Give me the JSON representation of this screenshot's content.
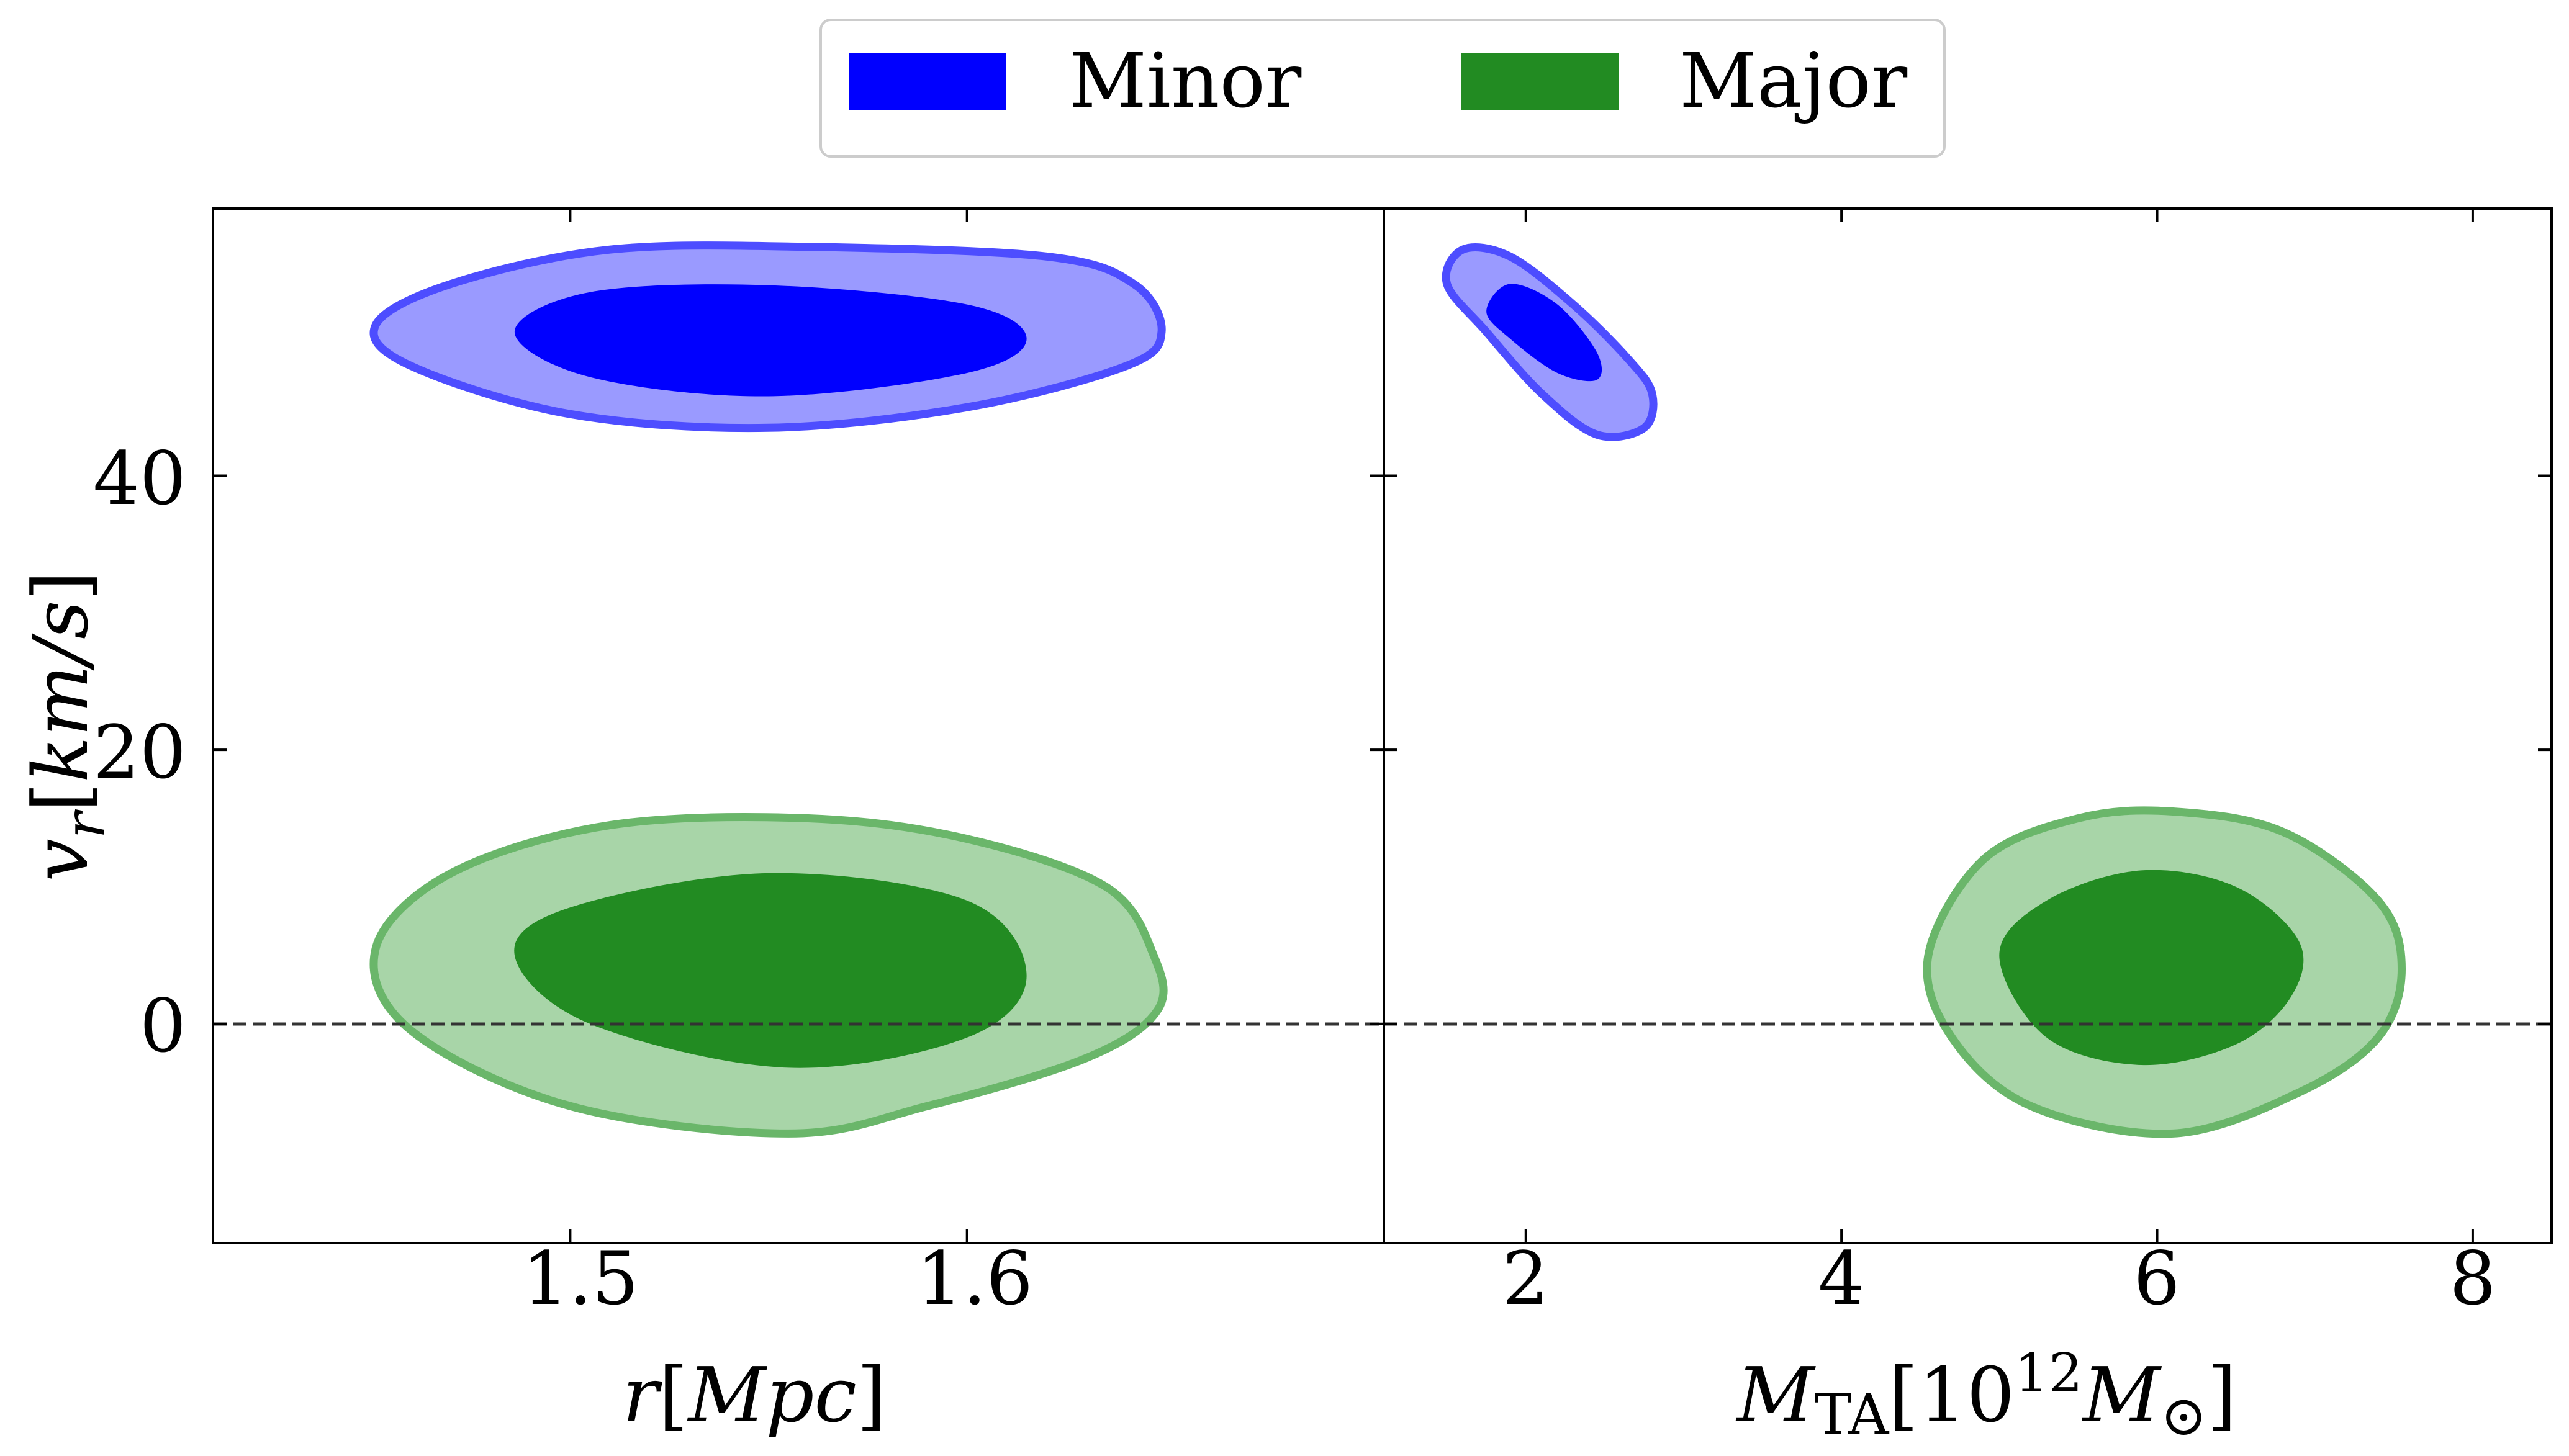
{
  "legend": {
    "placement": "top-center",
    "items": [
      {
        "label": "Minor",
        "color": "#0000ff"
      },
      {
        "label": "Major",
        "color": "#228b22"
      }
    ]
  },
  "colors": {
    "minor_fill": "#0000ff",
    "minor_outer_fill": "#9a9aff",
    "minor_edge": "#4d4dff",
    "major_fill": "#228b22",
    "major_outer_fill": "#a8d5a8",
    "major_edge": "#6ab66a",
    "reference_line": "#333333"
  },
  "panels": {
    "left": {
      "xlabel_main": "r",
      "xlabel_unit": "[Mpc]",
      "xticks": [
        "1.5",
        "1.6"
      ]
    },
    "right": {
      "xlabel_main": "M",
      "xlabel_sub": "TA",
      "xlabel_bracket_open": "[10",
      "xlabel_exp": "12",
      "xlabel_mass": "M",
      "xlabel_sun": "⊙",
      "xlabel_bracket_close": "]",
      "xticks": [
        "2",
        "4",
        "6",
        "8"
      ]
    },
    "ylabel_main": "v",
    "ylabel_sub": "r",
    "ylabel_unit": "[km/s]",
    "yticks": [
      "0",
      "20",
      "40"
    ]
  },
  "chart_data": [
    {
      "type": "contour",
      "panel": "left",
      "xlabel": "r[Mpc]",
      "ylabel": "v_r[km/s]",
      "xlim": [
        1.41,
        1.705
      ],
      "ylim": [
        -16,
        59.5
      ],
      "xticks": [
        1.5,
        1.6
      ],
      "yticks": [
        0,
        20,
        40
      ],
      "reference_line": {
        "y": 0,
        "style": "dashed"
      },
      "series": [
        {
          "name": "Minor",
          "levels": [
            {
              "level": "outer",
              "x": [
                1.451,
                1.47,
                1.51,
                1.56,
                1.62,
                1.642,
                1.649,
                1.64,
                1.6,
                1.55,
                1.5,
                1.46,
                1.451
              ],
              "y": [
                51,
                54,
                56.5,
                56.7,
                56,
                54,
                50.5,
                48,
                45,
                43.5,
                44.5,
                48,
                51
              ]
            },
            {
              "level": "inner",
              "x": [
                1.486,
                1.505,
                1.55,
                1.6,
                1.615,
                1.6,
                1.55,
                1.505,
                1.486
              ],
              "y": [
                50.5,
                53.4,
                53.9,
                52.5,
                50,
                47.5,
                45.8,
                47.2,
                50.5
              ]
            }
          ]
        },
        {
          "name": "Major",
          "levels": [
            {
              "level": "outer",
              "x": [
                1.451,
                1.47,
                1.51,
                1.56,
                1.6,
                1.635,
                1.647,
                1.648,
                1.63,
                1.59,
                1.555,
                1.5,
                1.46,
                1.451
              ],
              "y": [
                5.5,
                11,
                14.5,
                15,
                13.5,
                10,
                5,
                1,
                -2.5,
                -6,
                -8,
                -6,
                -0.5,
                5.5
              ]
            },
            {
              "level": "inner",
              "x": [
                1.486,
                1.5,
                1.55,
                1.6,
                1.615,
                1.6,
                1.555,
                1.505,
                1.486
              ],
              "y": [
                5,
                8.5,
                11,
                9,
                3.5,
                -1,
                -3.2,
                0,
                5
              ]
            }
          ]
        }
      ]
    },
    {
      "type": "contour",
      "panel": "right",
      "xlabel": "M_TA[10^12 M_⊙]",
      "xlim": [
        1.1,
        8.5
      ],
      "ylim": [
        -16,
        59.5
      ],
      "xticks": [
        2,
        4,
        6,
        8
      ],
      "yticks": [
        0,
        20,
        40
      ],
      "reference_line": {
        "y": 0,
        "style": "dashed"
      },
      "series": [
        {
          "name": "Minor",
          "levels": [
            {
              "level": "outer",
              "x": [
                1.5,
                1.6,
                1.9,
                2.3,
                2.65,
                2.8,
                2.75,
                2.45,
                2.1,
                1.75,
                1.5
              ],
              "y": [
                54,
                56.5,
                56,
                52.5,
                48.5,
                46,
                43.5,
                43,
                46,
                50.5,
                54
              ]
            },
            {
              "level": "inner",
              "x": [
                1.75,
                1.9,
                2.2,
                2.45,
                2.45,
                2.2,
                1.9,
                1.75
              ],
              "y": [
                52,
                54,
                52.5,
                49,
                47,
                47.5,
                50,
                52
              ]
            }
          ]
        },
        {
          "name": "Major",
          "levels": [
            {
              "level": "outer",
              "x": [
                4.55,
                4.9,
                5.5,
                6.1,
                6.8,
                7.4,
                7.55,
                7.4,
                6.9,
                6.1,
                5.2,
                4.7,
                4.55
              ],
              "y": [
                5,
                12,
                15,
                15.5,
                14,
                9,
                4,
                -1,
                -5,
                -8,
                -6,
                -1,
                5
              ]
            },
            {
              "level": "inner",
              "x": [
                5.0,
                5.3,
                5.9,
                6.5,
                6.9,
                6.85,
                6.5,
                5.9,
                5.3,
                5.0
              ],
              "y": [
                5,
                9,
                11.2,
                10,
                6,
                2,
                -1.5,
                -3,
                -1,
                5
              ]
            }
          ]
        }
      ]
    }
  ]
}
